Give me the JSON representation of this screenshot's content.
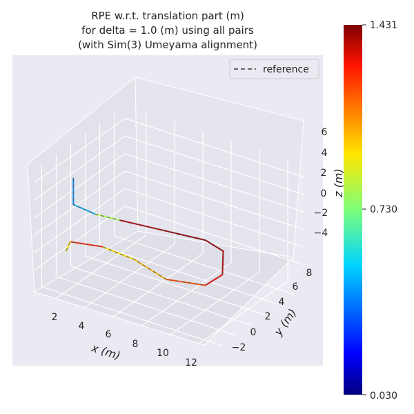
{
  "chart_data": {
    "type": "line",
    "projection": "3d",
    "title_lines": [
      "RPE w.r.t. translation part (m)",
      "for delta = 1.0 (m) using all pairs",
      "(with Sim(3) Umeyama alignment)"
    ],
    "xlabel": "x (m)",
    "ylabel": "y (m)",
    "zlabel": "z (m)",
    "x_ticks": [
      "2",
      "4",
      "6",
      "8",
      "10",
      "12"
    ],
    "y_ticks": [
      "−2",
      "0",
      "2",
      "4",
      "6",
      "8"
    ],
    "z_ticks": [
      "6",
      "4",
      "2",
      "0",
      "−2",
      "−4"
    ],
    "legend": {
      "position": "top-right",
      "entries": [
        {
          "label": "reference",
          "style": "dashed",
          "color": "#555555"
        }
      ]
    },
    "colorbar": {
      "colormap": "jet",
      "min_label": "0.030",
      "mid_label": "0.730",
      "max_label": "1.431",
      "min": 0.03,
      "mid": 0.73,
      "max": 1.431
    },
    "grid": true,
    "trajectory": {
      "description_units": "data",
      "points": [
        {
          "x": 1.2,
          "y": 1.0,
          "z": 4.5,
          "err": 0.2
        },
        {
          "x": 1.2,
          "y": 1.0,
          "z": 1.5,
          "err": 0.6
        },
        {
          "x": 2.5,
          "y": 1.5,
          "z": 0.8,
          "err": 0.3
        },
        {
          "x": 4.0,
          "y": 2.0,
          "z": 0.6,
          "err": 1.3
        },
        {
          "x": 6.5,
          "y": 3.0,
          "z": 0.2,
          "err": 1.4
        },
        {
          "x": 9.0,
          "y": 4.0,
          "z": -0.2,
          "err": 1.4
        },
        {
          "x": 10.0,
          "y": 4.5,
          "z": -1.2,
          "err": 1.4
        },
        {
          "x": 10.2,
          "y": 4.0,
          "z": -3.5,
          "err": 1.3
        },
        {
          "x": 9.5,
          "y": 3.0,
          "z": -4.5,
          "err": 1.2
        },
        {
          "x": 7.5,
          "y": 1.5,
          "z": -4.0,
          "err": 1.1
        },
        {
          "x": 5.5,
          "y": 1.0,
          "z": -2.5,
          "err": 0.9
        },
        {
          "x": 3.5,
          "y": 0.5,
          "z": -1.8,
          "err": 1.0
        },
        {
          "x": 1.5,
          "y": 0.0,
          "z": -2.0,
          "err": 1.4
        },
        {
          "x": 1.2,
          "y": 0.0,
          "z": -3.2,
          "err": 0.5
        }
      ]
    }
  }
}
